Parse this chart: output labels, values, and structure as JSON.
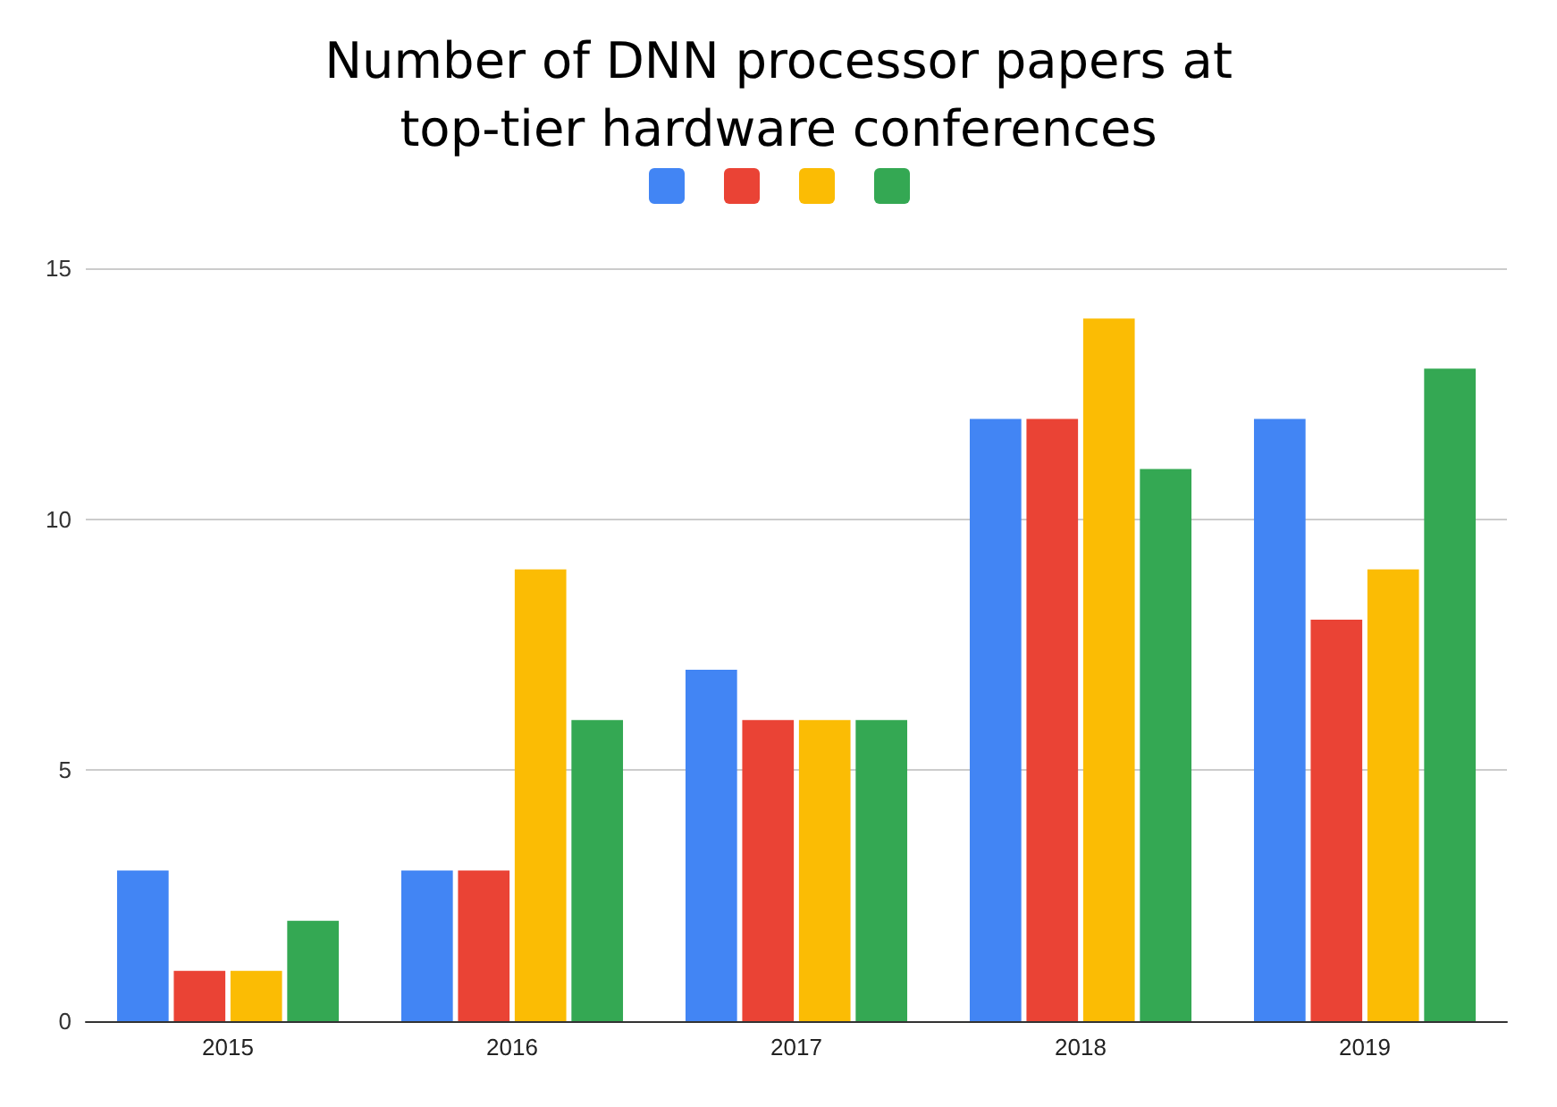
{
  "chart_data": {
    "type": "bar",
    "title": "Number of DNN processor papers at\ntop-tier hardware conferences",
    "categories": [
      "2015",
      "2016",
      "2017",
      "2018",
      "2019"
    ],
    "series": [
      {
        "color": "#4285f4",
        "values": [
          3,
          3,
          7,
          12,
          12
        ]
      },
      {
        "color": "#ea4335",
        "values": [
          1,
          3,
          6,
          12,
          8
        ]
      },
      {
        "color": "#fbbc04",
        "values": [
          1,
          9,
          6,
          14,
          9
        ]
      },
      {
        "color": "#34a853",
        "values": [
          2,
          6,
          6,
          11,
          13
        ]
      }
    ],
    "ylim": [
      0,
      15
    ],
    "yticks": [
      0,
      5,
      10,
      15
    ],
    "grid": "y"
  }
}
